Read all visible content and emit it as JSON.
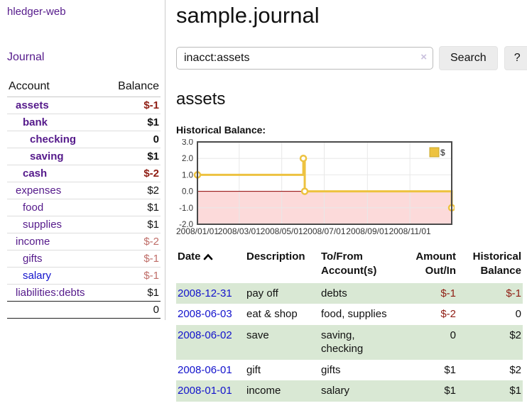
{
  "colors": {
    "link_visited_purple": "#551a8b",
    "link_blue": "#1212cc",
    "negative_strong": "#8f1d13",
    "negative_muted": "#bf6d68",
    "row_stripe_green": "#d9e8d4",
    "button_bg": "#ececec"
  },
  "app": {
    "title": "hledger-web"
  },
  "sidebar": {
    "journal_link": "Journal",
    "accounts": {
      "header_account": "Account",
      "header_balance": "Balance",
      "rows": [
        {
          "name": "assets",
          "depth": 1,
          "bold": true,
          "balance": "$-1",
          "neg": "strong"
        },
        {
          "name": "bank",
          "depth": 2,
          "bold": true,
          "balance": "$1"
        },
        {
          "name": "checking",
          "depth": 3,
          "bold": true,
          "balance": "0"
        },
        {
          "name": "saving",
          "depth": 3,
          "bold": true,
          "balance": "$1"
        },
        {
          "name": "cash",
          "depth": 2,
          "bold": true,
          "balance": "$-2",
          "neg": "strong"
        },
        {
          "name": "expenses",
          "depth": 1,
          "bold": false,
          "balance": "$2"
        },
        {
          "name": "food",
          "depth": 2,
          "bold": false,
          "balance": "$1"
        },
        {
          "name": "supplies",
          "depth": 2,
          "bold": false,
          "balance": "$1"
        },
        {
          "name": "income",
          "depth": 1,
          "bold": false,
          "balance": "$-2",
          "neg": "muted"
        },
        {
          "name": "gifts",
          "depth": 2,
          "bold": false,
          "balance": "$-1",
          "neg": "muted"
        },
        {
          "name": "salary",
          "depth": 2,
          "bold": false,
          "balance": "$-1",
          "neg": "muted",
          "link": "unvisited"
        },
        {
          "name": "liabilities:debts",
          "depth": 1,
          "bold": false,
          "balance": "$1"
        }
      ],
      "total": "0"
    }
  },
  "main": {
    "title": "sample.journal",
    "search": {
      "value": "inacct:assets",
      "clear_icon": "×",
      "button_label": "Search",
      "help_label": "?"
    },
    "account_heading": "assets",
    "chart_label": "Historical Balance:",
    "register": {
      "headers": {
        "date": "Date",
        "description": "Description",
        "accounts": "To/From Account(s)",
        "amount": "Amount Out/In",
        "balance": "Historical Balance"
      },
      "sort": "date-ascending",
      "rows": [
        {
          "date": "2008-12-31",
          "description": "pay off",
          "accounts": "debts",
          "amount": "$-1",
          "amount_neg": true,
          "balance": "$-1",
          "balance_neg": true
        },
        {
          "date": "2008-06-03",
          "description": "eat & shop",
          "accounts": "food, supplies",
          "amount": "$-2",
          "amount_neg": true,
          "balance": "0",
          "balance_neg": false
        },
        {
          "date": "2008-06-02",
          "description": "save",
          "accounts": "saving, checking",
          "amount": "0",
          "amount_neg": false,
          "balance": "$2",
          "balance_neg": false
        },
        {
          "date": "2008-06-01",
          "description": "gift",
          "accounts": "gifts",
          "amount": "$1",
          "amount_neg": false,
          "balance": "$2",
          "balance_neg": false
        },
        {
          "date": "2008-01-01",
          "description": "income",
          "accounts": "salary",
          "amount": "$1",
          "amount_neg": false,
          "balance": "$1",
          "balance_neg": false
        }
      ]
    }
  },
  "chart_data": {
    "type": "line",
    "title": "Historical Balance:",
    "legend": "$",
    "legend_position": "top-right",
    "grid": true,
    "line_style": "step",
    "x_span_days": 365,
    "xticks": [
      {
        "day": 0,
        "label": "2008/01/01"
      },
      {
        "day": 60,
        "label": "2008/03/01"
      },
      {
        "day": 121,
        "label": "2008/05/01"
      },
      {
        "day": 182,
        "label": "2008/07/01"
      },
      {
        "day": 244,
        "label": "2008/09/01"
      },
      {
        "day": 305,
        "label": "2008/11/01"
      }
    ],
    "yticks": [
      -2,
      -1,
      0,
      1,
      2,
      3
    ],
    "ylim": [
      -2,
      3
    ],
    "series": [
      {
        "name": "$",
        "points": [
          {
            "date": "2008-01-01",
            "day": 0,
            "value": 1
          },
          {
            "date": "2008-06-01",
            "day": 152,
            "value": 2
          },
          {
            "date": "2008-06-03",
            "day": 154,
            "value": 0
          },
          {
            "date": "2008-12-31",
            "day": 365,
            "value": -1
          }
        ]
      }
    ],
    "colors": {
      "line": "#edc240",
      "marker_fill": "#ffffff",
      "negative_region": "#fcdada",
      "zero_line": "#8b0000",
      "plot_border": "#4a4a4a",
      "gridline": "#e8e8e8",
      "legend_box_border": "#c9a82e"
    }
  }
}
